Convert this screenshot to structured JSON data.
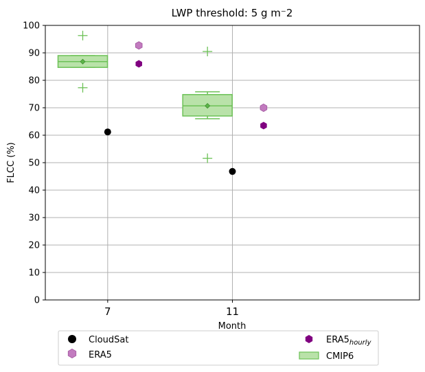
{
  "chart_data": {
    "type": "box",
    "title": "LWP threshold: 5 g m⁻2",
    "xlabel": "Month",
    "ylabel": "FLCC (%)",
    "ylim": [
      0,
      100
    ],
    "yticks": [
      0,
      10,
      20,
      30,
      40,
      50,
      60,
      70,
      80,
      90,
      100
    ],
    "xlim": [
      5,
      17
    ],
    "xticks": [
      7,
      11
    ],
    "grid": true,
    "legend_position": "bottom",
    "colors": {
      "cloudsat": "#000000",
      "era5": "#c27bbf",
      "era5_hourly": "#800080",
      "cmip6_fill": "#b9e2a9",
      "cmip6_line": "#6cc156",
      "grid": "#b0b0b0"
    },
    "cloudsat": [
      {
        "x": 7,
        "y": 61.2
      },
      {
        "x": 11,
        "y": 46.8
      }
    ],
    "era5": [
      {
        "x": 8,
        "y": 92.7
      },
      {
        "x": 12,
        "y": 70.0
      }
    ],
    "era5_hourly": [
      {
        "x": 8,
        "y": 86.0
      },
      {
        "x": 12,
        "y": 63.5
      }
    ],
    "cmip6": [
      {
        "x": 6.2,
        "q1": 84.7,
        "median": 86.8,
        "q3": 89.0,
        "whisker_low": 84.7,
        "whisker_high": 89.0,
        "mean": 86.8,
        "outliers": [
          96.3,
          77.3
        ]
      },
      {
        "x": 10.2,
        "q1": 67.0,
        "median": 70.7,
        "q3": 74.8,
        "whisker_low": 66.0,
        "whisker_high": 75.8,
        "mean": 70.7,
        "outliers": [
          90.5,
          51.6
        ]
      }
    ],
    "legend": {
      "cloudsat": "CloudSat",
      "era5": "ERA5",
      "era5_hourly": "ERA5",
      "era5_hourly_sub": "hourly",
      "cmip6": "CMIP6"
    }
  }
}
